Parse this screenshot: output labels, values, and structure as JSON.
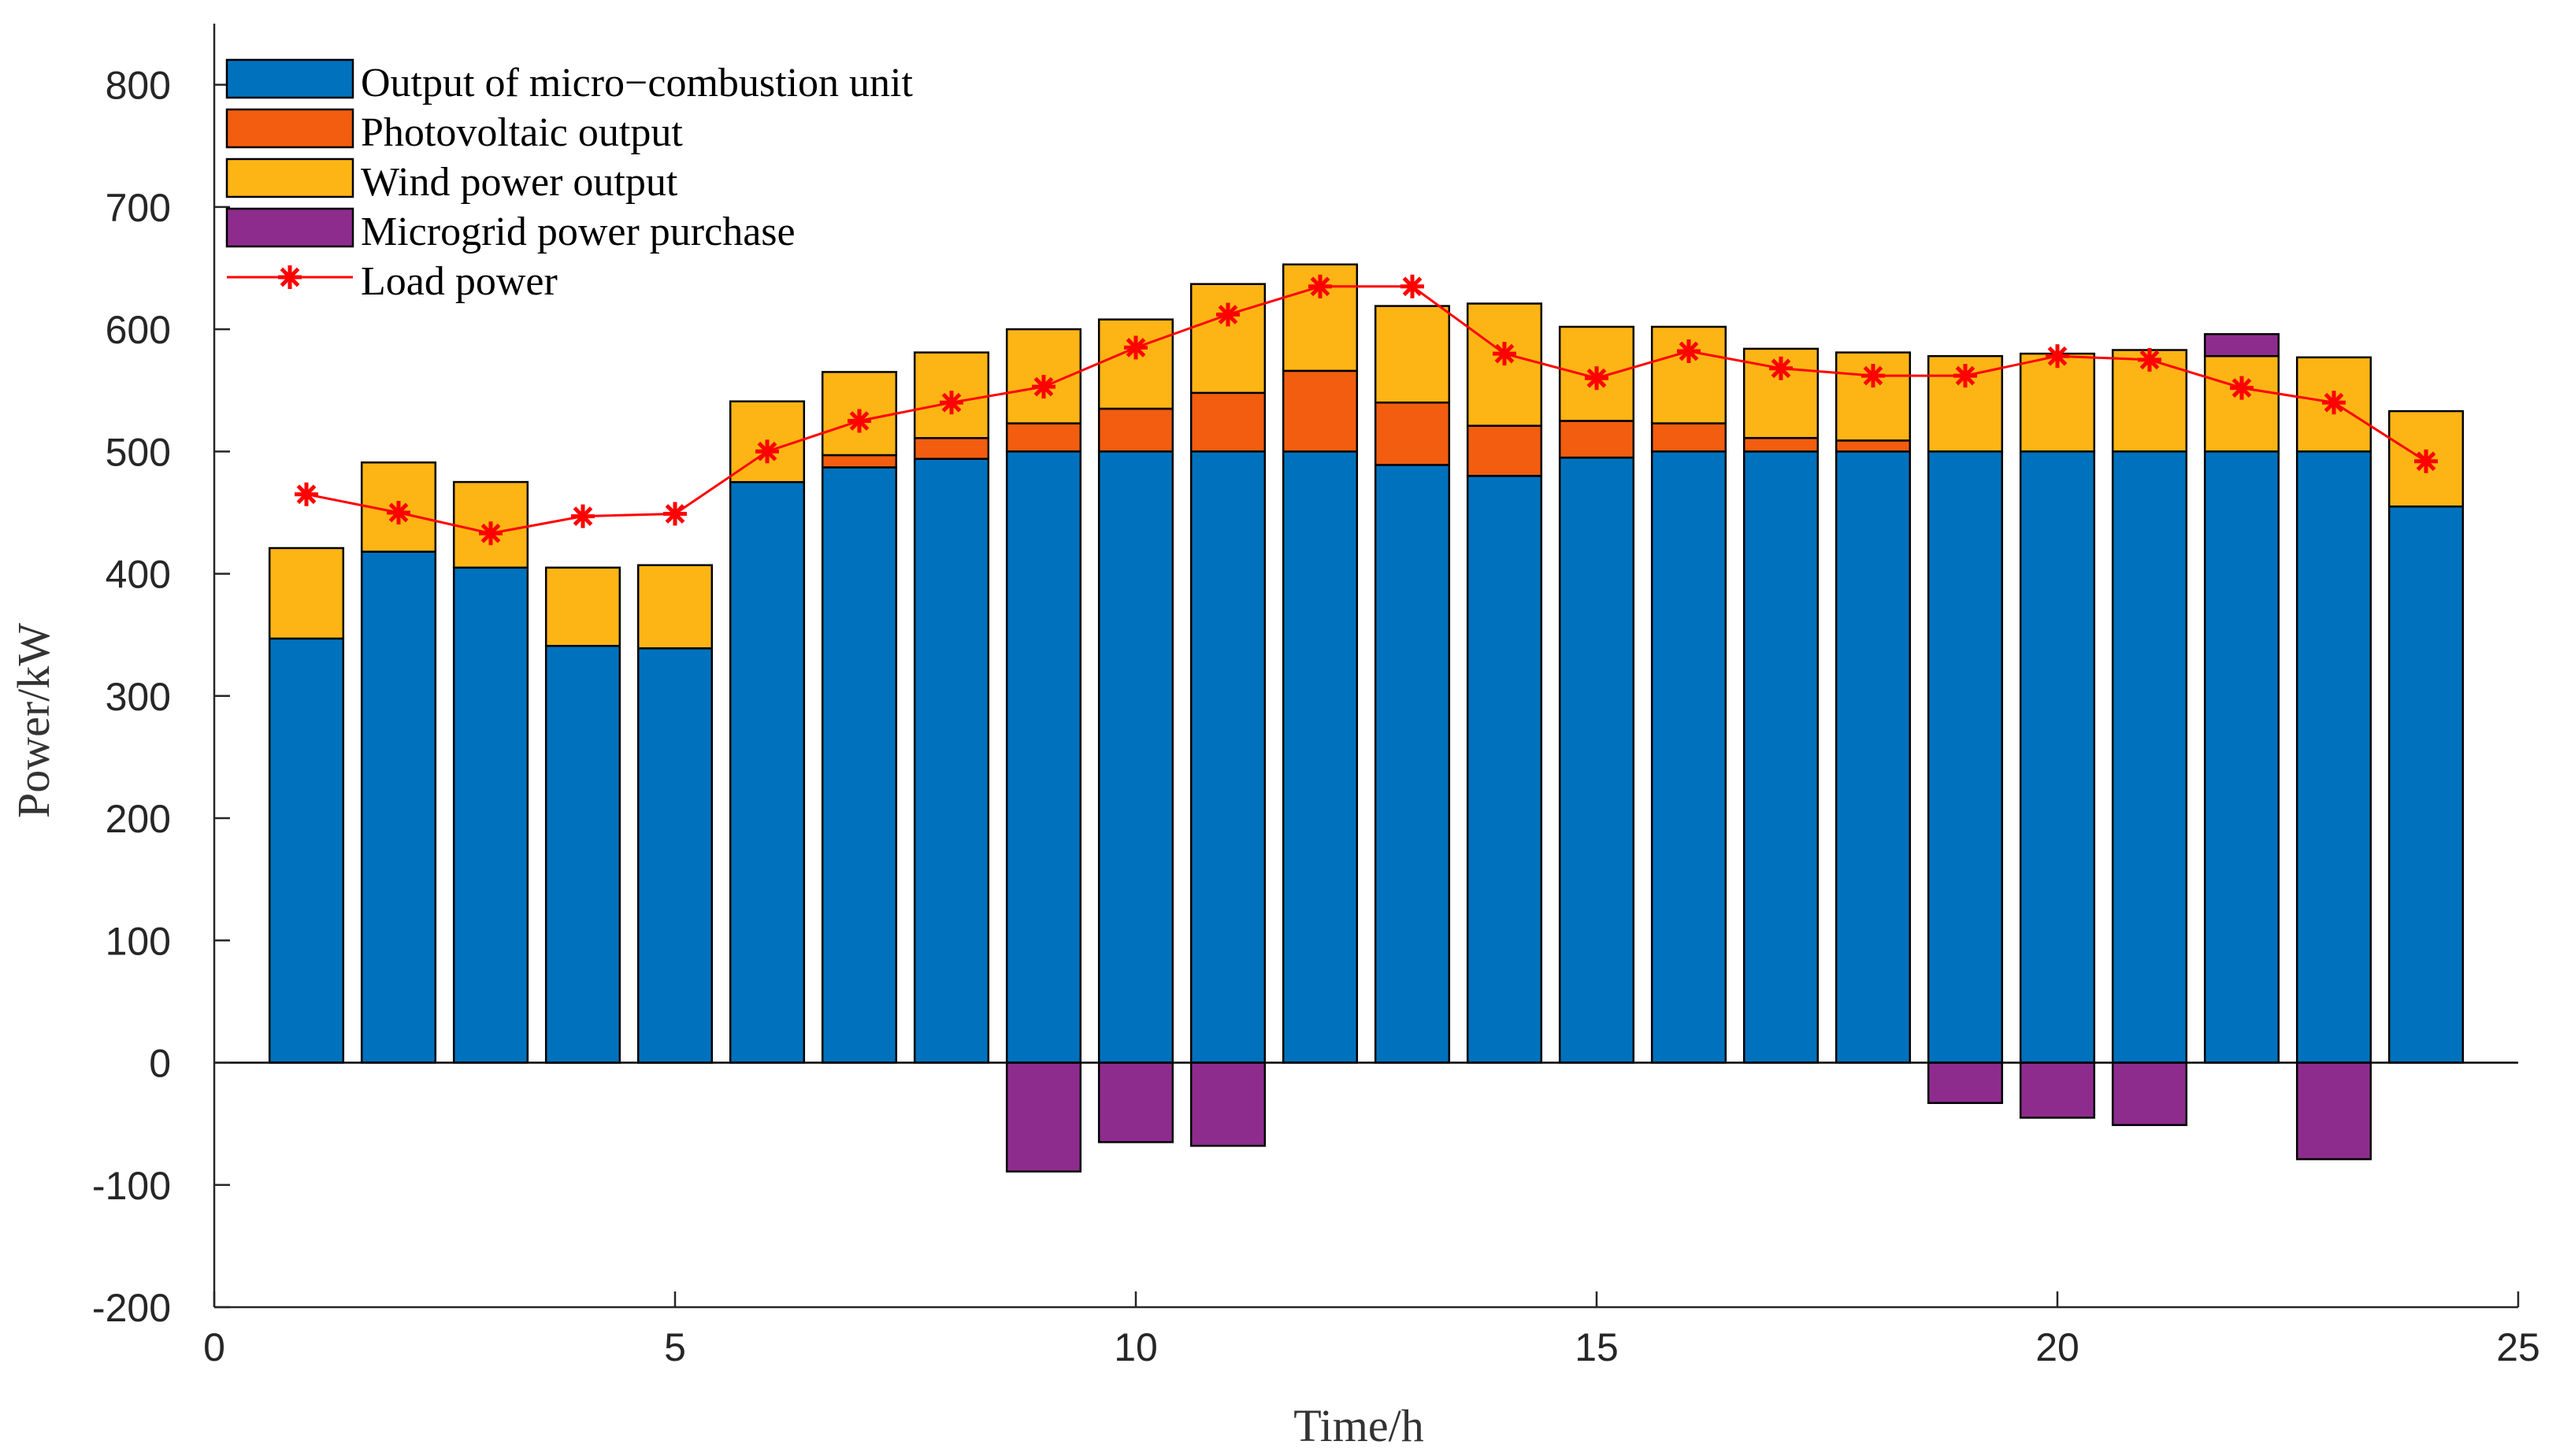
{
  "chart_data": {
    "type": "bar",
    "stacked": true,
    "xlabel": "Time/h",
    "ylabel": "Power/kW",
    "xlim": [
      0,
      25
    ],
    "ylim": [
      -200,
      850
    ],
    "xticks": [
      0,
      5,
      10,
      15,
      20,
      25
    ],
    "yticks": [
      -200,
      -100,
      0,
      100,
      200,
      300,
      400,
      500,
      600,
      700,
      800
    ],
    "grid": false,
    "legend_position": "top-left",
    "categories": [
      1,
      2,
      3,
      4,
      5,
      6,
      7,
      8,
      9,
      10,
      11,
      12,
      13,
      14,
      15,
      16,
      17,
      18,
      19,
      20,
      21,
      22,
      23,
      24
    ],
    "series": [
      {
        "name": "Output of micro−combustion unit",
        "kind": "bar",
        "color": "#0072BD",
        "values": [
          347,
          418,
          405,
          341,
          339,
          475,
          487,
          494,
          500,
          500,
          500,
          500,
          489,
          480,
          495,
          500,
          500,
          500,
          500,
          500,
          500,
          500,
          500,
          455
        ]
      },
      {
        "name": "Photovoltaic output",
        "kind": "bar",
        "color": "#F25D10",
        "values": [
          0,
          0,
          0,
          0,
          0,
          0,
          10,
          17,
          23,
          35,
          48,
          66,
          51,
          41,
          30,
          23,
          11,
          9,
          0,
          0,
          0,
          0,
          0,
          0
        ]
      },
      {
        "name": "Wind power output",
        "kind": "bar",
        "color": "#FDB515",
        "values": [
          74,
          73,
          70,
          64,
          68,
          66,
          68,
          70,
          77,
          73,
          89,
          87,
          79,
          100,
          77,
          79,
          73,
          72,
          78,
          80,
          83,
          78,
          77,
          78
        ]
      },
      {
        "name": "Microgrid power purchase",
        "kind": "bar",
        "color": "#8E2C8E",
        "values": [
          0,
          0,
          0,
          0,
          0,
          0,
          0,
          0,
          -89,
          -65,
          -68,
          0,
          0,
          0,
          0,
          0,
          0,
          0,
          -33,
          -45,
          -51,
          18,
          -79,
          0
        ]
      },
      {
        "name": "Load power",
        "kind": "line",
        "color": "#FF0000",
        "marker": "*",
        "values": [
          465,
          450,
          433,
          447,
          449,
          500,
          525,
          540,
          553,
          585,
          612,
          635,
          635,
          580,
          560,
          582,
          568,
          562,
          562,
          578,
          575,
          552,
          540,
          492
        ]
      }
    ]
  }
}
